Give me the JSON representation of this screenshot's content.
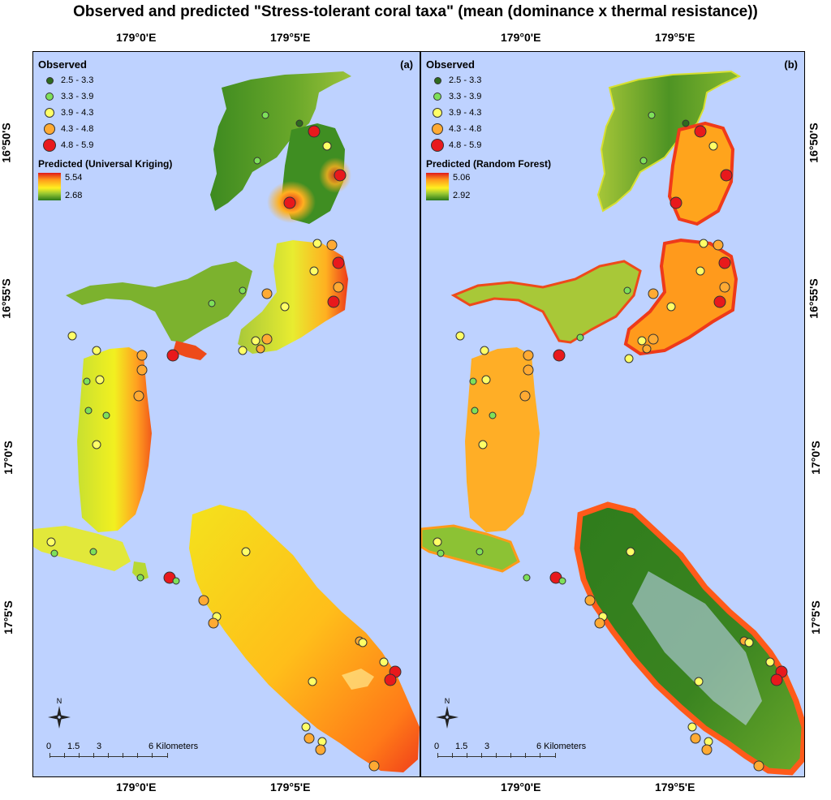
{
  "title": "Observed and predicted \"Stress-tolerant coral taxa\" (mean (dominance x thermal resistance))",
  "axes": {
    "lon_ticks": [
      "179°0'E",
      "179°5'E"
    ],
    "lat_ticks": [
      "16°50'S",
      "16°55'S",
      "17°0'S",
      "17°5'S"
    ]
  },
  "legend": {
    "observed_title": "Observed",
    "classes": [
      {
        "label": "2.5 - 3.3",
        "color": "#2e6b1f"
      },
      {
        "label": "3.3 - 3.9",
        "color": "#7ee05a"
      },
      {
        "label": "3.9 - 4.3",
        "color": "#ffff66"
      },
      {
        "label": "4.3 - 4.8",
        "color": "#ffaa33"
      },
      {
        "label": "4.8 - 5.9",
        "color": "#e8191c"
      }
    ]
  },
  "panels": [
    {
      "letter": "(a)",
      "predicted_title": "Predicted (Universal Kriging)",
      "ramp_max": "5.54",
      "ramp_min": "2.68"
    },
    {
      "letter": "(b)",
      "predicted_title": "Predicted (Random Forest)",
      "ramp_max": "5.06",
      "ramp_min": "2.92"
    }
  ],
  "north_label": "N",
  "scalebar": {
    "ticks": [
      "0",
      "1.5",
      "3",
      "6 Kilometers"
    ]
  },
  "colors": {
    "water": "#bed2ff",
    "low": "#2a7a1a",
    "mid": "#fff020",
    "high": "#e01a1a"
  }
}
